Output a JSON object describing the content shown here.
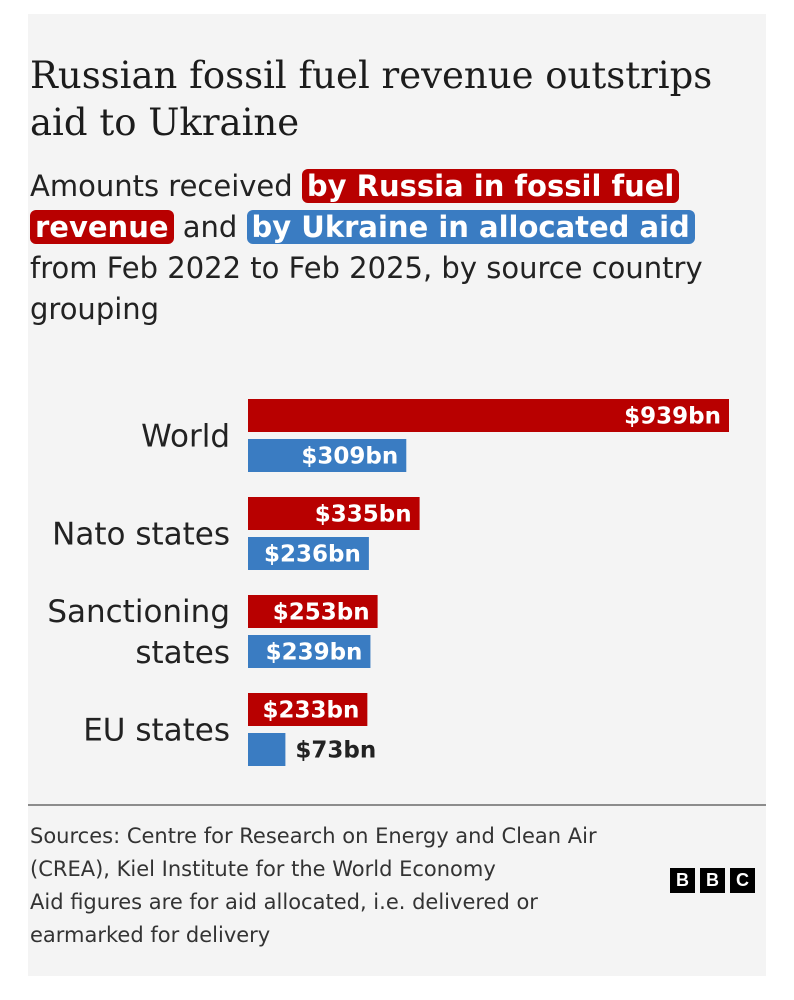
{
  "header": {
    "title": "Russian fossil fuel revenue outstrips aid to Ukraine",
    "subtitle_part1": "Amounts received ",
    "subtitle_russia": "by Russia in fossil fuel revenue",
    "subtitle_and": " and ",
    "subtitle_ukraine": "by Ukraine in allocated aid",
    "subtitle_part2": " from Feb 2022 to Feb 2025, by source country grouping"
  },
  "colors": {
    "russia": "#b80000",
    "ukraine": "#3a7cc2",
    "background": "#f4f4f4"
  },
  "chart_data": {
    "type": "bar",
    "orientation": "horizontal",
    "categories": [
      "World",
      "Nato states",
      "Sanctioning states",
      "EU states"
    ],
    "series": [
      {
        "name": "by Russia in fossil fuel revenue",
        "values": [
          939,
          335,
          253,
          233
        ],
        "labels": [
          "$939bn",
          "$335bn",
          "$253bn",
          "$233bn"
        ]
      },
      {
        "name": "by Ukraine in allocated aid",
        "values": [
          309,
          236,
          239,
          73
        ],
        "labels": [
          "$309bn",
          "$236bn",
          "$239bn",
          "$73bn"
        ]
      }
    ],
    "unit": "$bn",
    "xlim": [
      0,
      939
    ],
    "grid": false,
    "legend": "inline in subtitle"
  },
  "footer": {
    "source_line1": "Sources: Centre for Research on Energy and Clean Air (CREA), Kiel Institute for the World Economy",
    "source_line2": "Aid figures are for aid allocated, i.e. delivered or earmarked for delivery",
    "logo_letters": [
      "B",
      "B",
      "C"
    ]
  }
}
